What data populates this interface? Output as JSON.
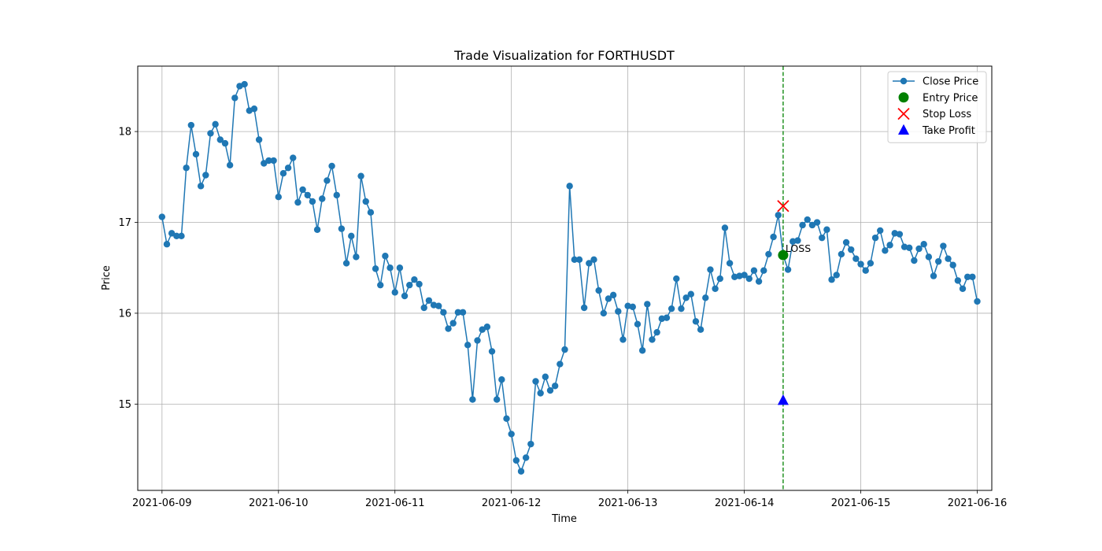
{
  "chart_data": {
    "type": "line",
    "title": "Trade Visualization for FORTHUSDT",
    "xlabel": "Time",
    "ylabel": "Price",
    "x_start": "2021-06-09T00:00",
    "x_step_hours": 1,
    "xlim": [
      "2021-06-08T19:00",
      "2021-06-16T03:00"
    ],
    "ylim": [
      14.05,
      18.72
    ],
    "x_ticks": [
      "2021-06-09",
      "2021-06-10",
      "2021-06-11",
      "2021-06-12",
      "2021-06-13",
      "2021-06-14",
      "2021-06-15",
      "2021-06-16"
    ],
    "y_ticks": [
      "15",
      "16",
      "17",
      "18"
    ],
    "grid": true,
    "legend_position": "top-right",
    "series": [
      {
        "name": "Close Price",
        "color": "#1f77b4",
        "values": [
          17.06,
          16.76,
          16.88,
          16.85,
          16.85,
          17.6,
          18.07,
          17.75,
          17.4,
          17.52,
          17.98,
          18.08,
          17.91,
          17.87,
          17.63,
          18.37,
          18.5,
          18.52,
          18.23,
          18.25,
          17.91,
          17.65,
          17.68,
          17.68,
          17.28,
          17.54,
          17.6,
          17.71,
          17.22,
          17.36,
          17.3,
          17.23,
          16.92,
          17.26,
          17.46,
          17.62,
          17.3,
          16.93,
          16.55,
          16.85,
          16.62,
          17.51,
          17.23,
          17.11,
          16.49,
          16.31,
          16.63,
          16.5,
          16.23,
          16.5,
          16.19,
          16.31,
          16.37,
          16.32,
          16.06,
          16.14,
          16.09,
          16.08,
          16.01,
          15.83,
          15.89,
          16.01,
          16.01,
          15.65,
          15.05,
          15.7,
          15.82,
          15.85,
          15.58,
          15.05,
          15.27,
          14.84,
          14.67,
          14.38,
          14.26,
          14.41,
          14.56,
          15.25,
          15.12,
          15.3,
          15.15,
          15.2,
          15.44,
          15.6,
          17.4,
          16.59,
          16.59,
          16.06,
          16.55,
          16.59,
          16.25,
          16.0,
          16.16,
          16.2,
          16.02,
          15.71,
          16.08,
          16.07,
          15.88,
          15.59,
          16.1,
          15.71,
          15.79,
          15.94,
          15.95,
          16.05,
          16.38,
          16.05,
          16.17,
          16.21,
          15.91,
          15.82,
          16.17,
          16.48,
          16.27,
          16.38,
          16.94,
          16.55,
          16.4,
          16.41,
          16.42,
          16.38,
          16.47,
          16.35,
          16.47,
          16.65,
          16.84,
          17.08,
          16.64,
          16.48,
          16.79,
          16.8,
          16.97,
          17.03,
          16.97,
          17.0,
          16.83,
          16.92,
          16.37,
          16.42,
          16.65,
          16.78,
          16.7,
          16.6,
          16.54,
          16.47,
          16.55,
          16.83,
          16.91,
          16.69,
          16.75,
          16.88,
          16.87,
          16.73,
          16.72,
          16.58,
          16.71,
          16.76,
          16.62,
          16.41,
          16.57,
          16.74,
          16.6,
          16.53,
          16.36,
          16.27,
          16.4,
          16.4,
          16.13
        ]
      }
    ],
    "markers": [
      {
        "name": "Entry Price",
        "x": "2021-06-14T08:00",
        "y": 16.64,
        "color": "#008000",
        "shape": "circle"
      },
      {
        "name": "Stop Loss",
        "x": "2021-06-14T08:00",
        "y": 17.18,
        "color": "#ff0000",
        "shape": "x"
      },
      {
        "name": "Take Profit",
        "x": "2021-06-14T08:00",
        "y": 15.04,
        "color": "#0000ff",
        "shape": "triangle"
      }
    ],
    "vertical_line": {
      "x": "2021-06-14T08:00",
      "color": "#008000",
      "style": "dashed"
    },
    "annotations": [
      {
        "text": "LOSS",
        "x": "2021-06-14T08:00",
        "y": 16.64
      }
    ]
  }
}
